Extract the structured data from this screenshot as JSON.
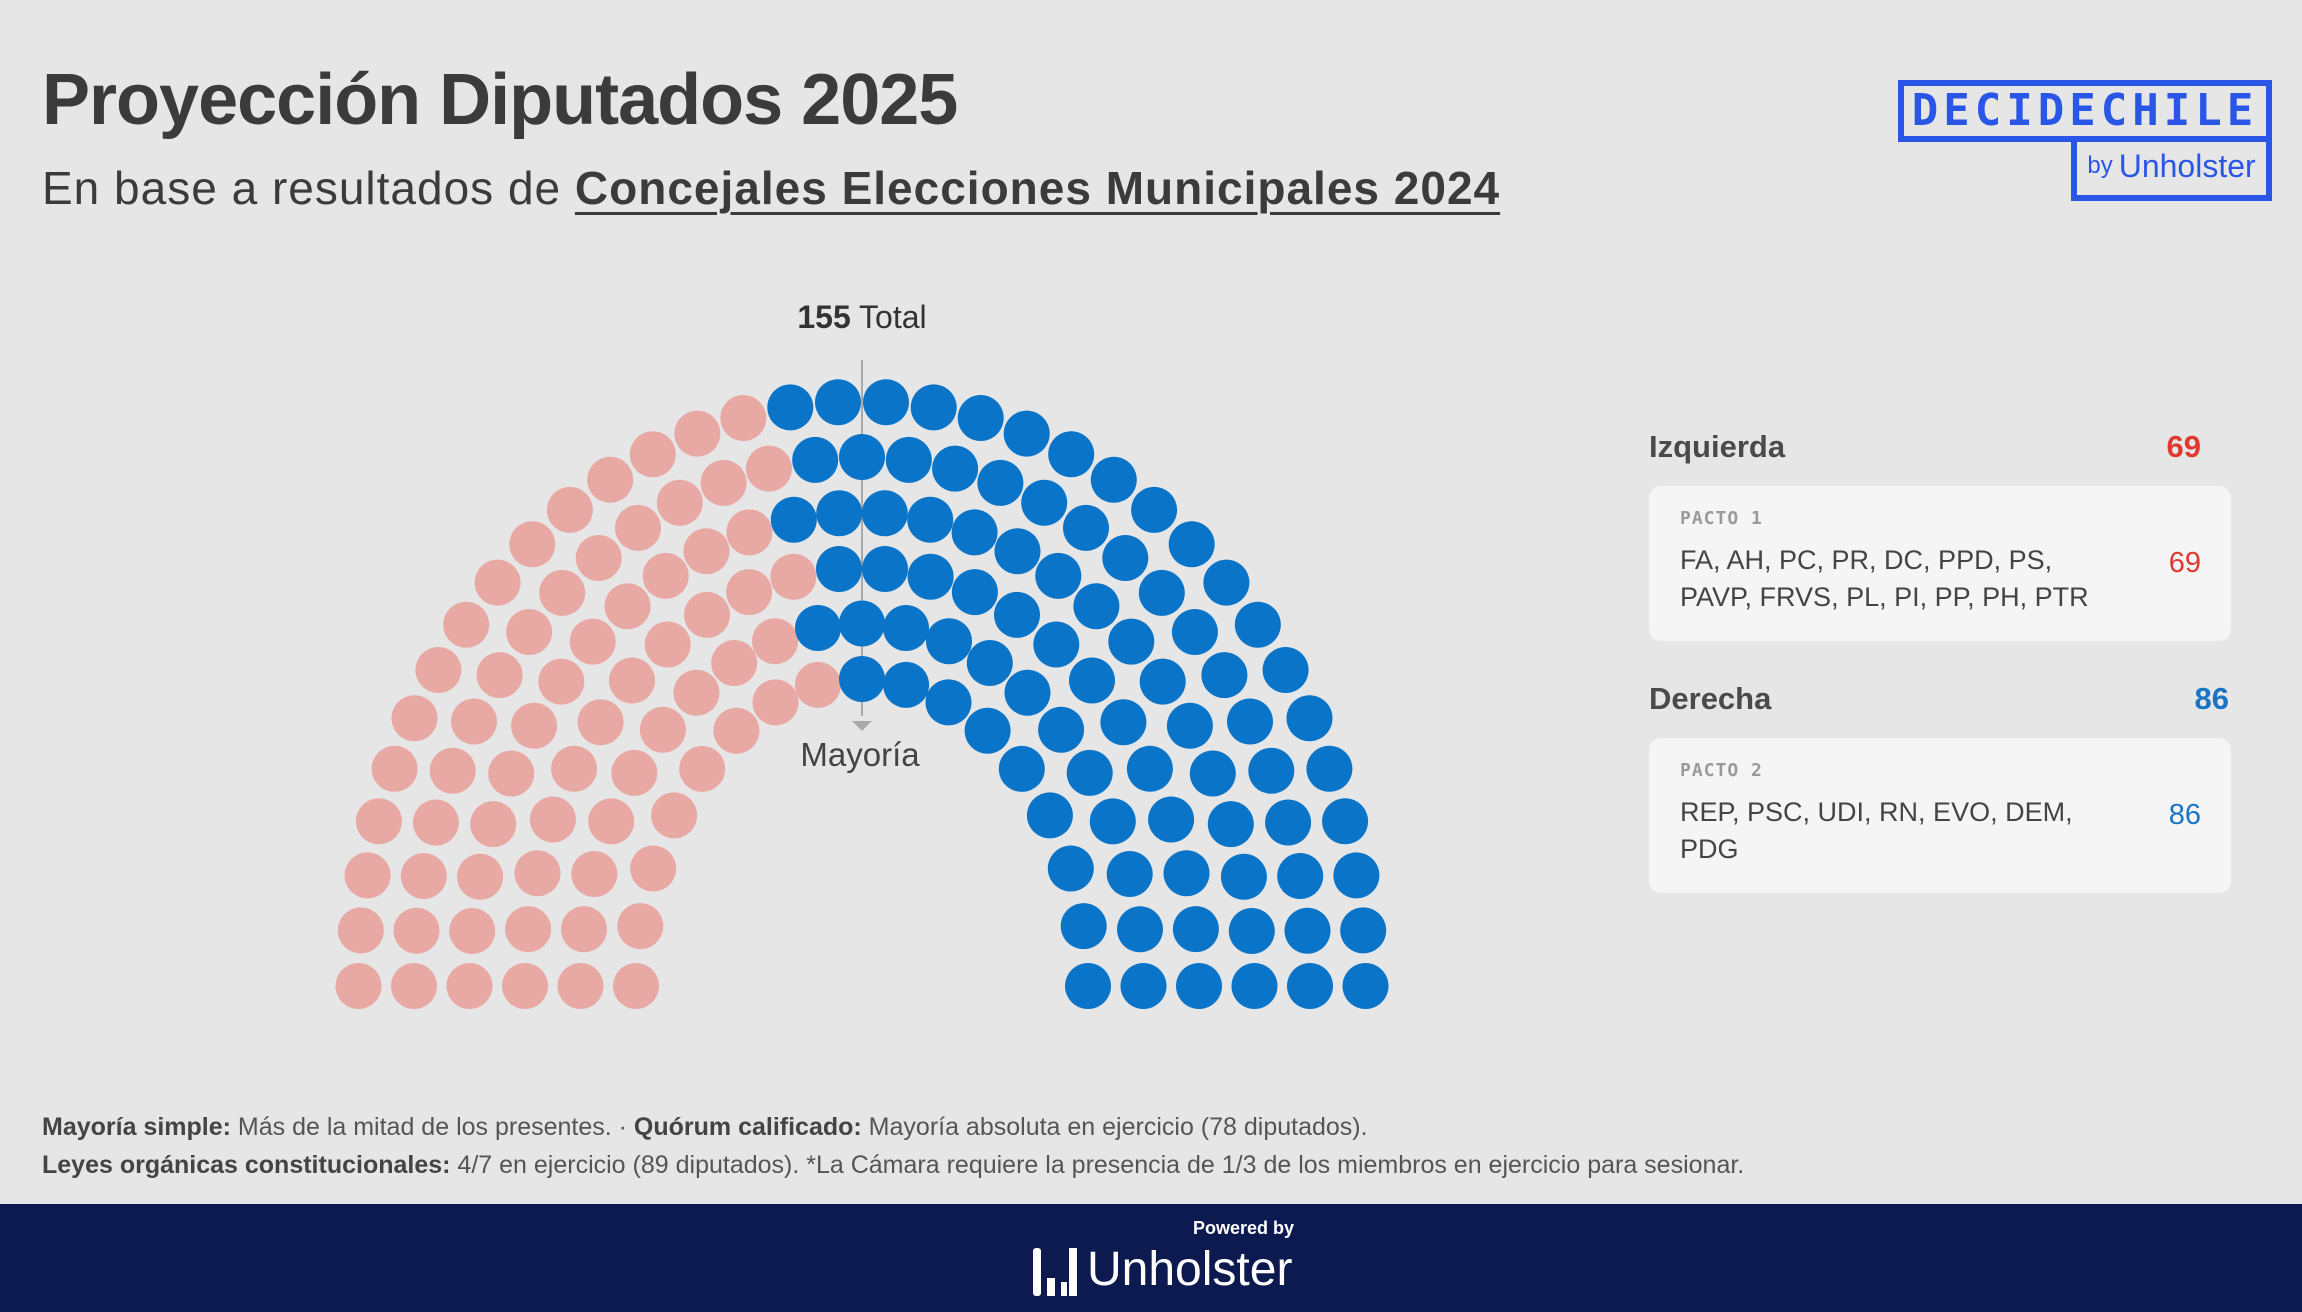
{
  "header": {
    "title": "Proyección Diputados 2025",
    "subtitle_prefix": "En base a resultados de",
    "subtitle_link": "Concejales Elecciones Municipales 2024"
  },
  "logo": {
    "brand": "DECIDECHILE",
    "by": "by",
    "company": "Unholster"
  },
  "chart_data": {
    "type": "hemicycle",
    "total": 155,
    "total_label": "Total",
    "majority_label": "Mayoría",
    "series": [
      {
        "name": "Izquierda",
        "value": 69,
        "color": "#e8a9a5"
      },
      {
        "name": "Derecha",
        "value": 86,
        "color": "#0a74c9"
      }
    ]
  },
  "legend": {
    "groups": [
      {
        "name": "Izquierda",
        "total": "69",
        "color": "#e0392f",
        "pacto": "PACTO 1",
        "parties": "FA, AH, PC, PR, DC, PPD, PS, PAVP, FRVS, PL, PI, PP, PH, PTR",
        "value": "69"
      },
      {
        "name": "Derecha",
        "total": "86",
        "color": "#1a74c6",
        "pacto": "PACTO 2",
        "parties": "REP, PSC, UDI, RN, EVO, DEM, PDG",
        "value": "86"
      }
    ]
  },
  "notes": {
    "l1_b1": "Mayoría simple:",
    "l1_t1": " Más de la mitad de los presentes. · ",
    "l1_b2": "Quórum calificado:",
    "l1_t2": " Mayoría absoluta en ejercicio (78 diputados).",
    "l2_b1": "Leyes orgánicas constitucionales:",
    "l2_t1": " 4/7 en ejercicio (89 diputados). *La Cámara requiere la presencia de 1/3 de los miembros en ejercicio para sesionar."
  },
  "footer": {
    "powered": "Powered by",
    "company": "Unholster"
  }
}
